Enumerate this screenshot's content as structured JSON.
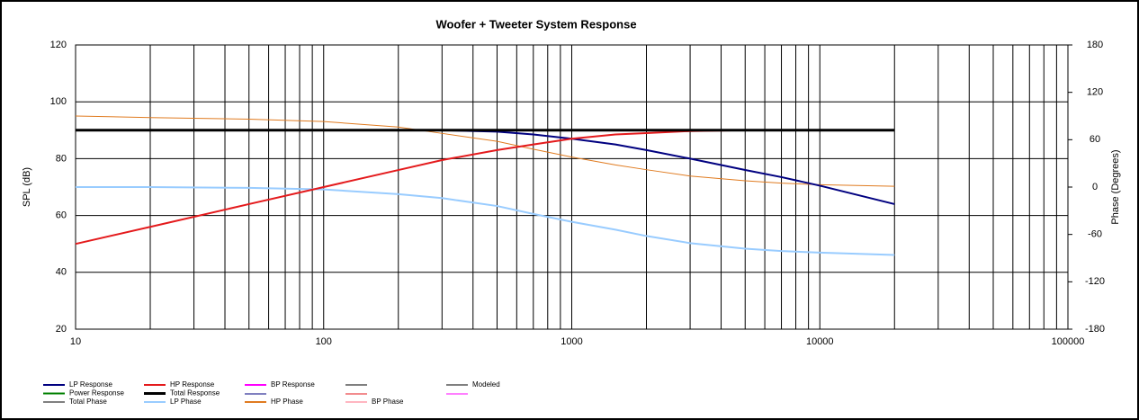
{
  "chart_data": {
    "type": "line",
    "title": "Woofer + Tweeter    System Response",
    "ylabel": "SPL (dB)",
    "y2label": "Phase (Degrees)",
    "xscale": "log",
    "grid": true,
    "x": [
      10,
      20,
      50,
      100,
      200,
      300,
      500,
      700,
      1000,
      1500,
      2000,
      3000,
      5000,
      7000,
      10000,
      20000
    ],
    "xlim": [
      10,
      100000
    ],
    "xticks": [
      10,
      100,
      1000,
      10000,
      100000
    ],
    "ylim": [
      20,
      120
    ],
    "yticks": [
      20,
      40,
      60,
      80,
      100,
      120
    ],
    "y2lim": [
      -180,
      180
    ],
    "y2ticks": [
      -180,
      -120,
      -60,
      0,
      60,
      120,
      180
    ],
    "series": [
      {
        "name": "LP Response",
        "color": "#000080",
        "width": 2,
        "values": [
          90,
          90,
          90,
          90,
          90,
          90,
          89.5,
          88.5,
          87,
          85,
          83,
          80,
          76,
          73.5,
          70.5,
          64
        ]
      },
      {
        "name": "HP Response",
        "color": "#e41a1c",
        "width": 2,
        "values": [
          50,
          56,
          64,
          70,
          76,
          79.5,
          83,
          85,
          87,
          88.5,
          89,
          89.7,
          90,
          null,
          null,
          null
        ]
      },
      {
        "name": "BP Response",
        "color": "#ff00ff",
        "width": 2,
        "values": [
          null,
          null,
          null,
          null,
          null,
          null,
          null,
          null,
          null,
          null,
          null,
          null,
          null,
          null,
          null,
          null
        ]
      },
      {
        "name": "Modeled",
        "color": "#808080",
        "width": 1,
        "values": [
          null,
          null,
          null,
          null,
          null,
          null,
          null,
          null,
          null,
          null,
          null,
          null,
          null,
          null,
          null,
          null
        ]
      },
      {
        "name": "Power Response",
        "color": "#008000",
        "width": 2,
        "values": [
          null,
          null,
          null,
          null,
          null,
          null,
          null,
          null,
          null,
          null,
          null,
          null,
          null,
          null,
          null,
          null
        ]
      },
      {
        "name": "Total Response",
        "color": "#000000",
        "width": 3,
        "values": [
          90,
          90,
          90,
          90,
          90,
          90,
          90,
          90,
          90,
          90,
          90,
          90,
          90,
          90,
          90,
          90
        ]
      },
      {
        "name": "Total Phase",
        "color": "#808080",
        "width": 1,
        "axis": "y2",
        "values": [
          null,
          null,
          null,
          null,
          null,
          null,
          null,
          null,
          null,
          null,
          null,
          null,
          null,
          null,
          null,
          null
        ]
      },
      {
        "name": "LP Phase",
        "color": "#99ccff",
        "width": 2,
        "axis": "y2",
        "values": [
          0,
          0,
          -1,
          -3,
          -9,
          -14,
          -24,
          -34,
          -44,
          -54,
          -62,
          -71,
          -78,
          -81,
          -83,
          -86
        ]
      },
      {
        "name": "HP Phase",
        "color": "#e07b20",
        "width": 1,
        "axis": "y2",
        "values": [
          90,
          88,
          86,
          83,
          76,
          68,
          58,
          48,
          38,
          28,
          22,
          14,
          8,
          5,
          3,
          1
        ]
      },
      {
        "name": "BP Phase",
        "color": "#ffb6c1",
        "width": 1,
        "axis": "y2",
        "values": [
          null,
          null,
          null,
          null,
          null,
          null,
          null,
          null,
          null,
          null,
          null,
          null,
          null,
          null,
          null,
          null
        ]
      }
    ]
  }
}
